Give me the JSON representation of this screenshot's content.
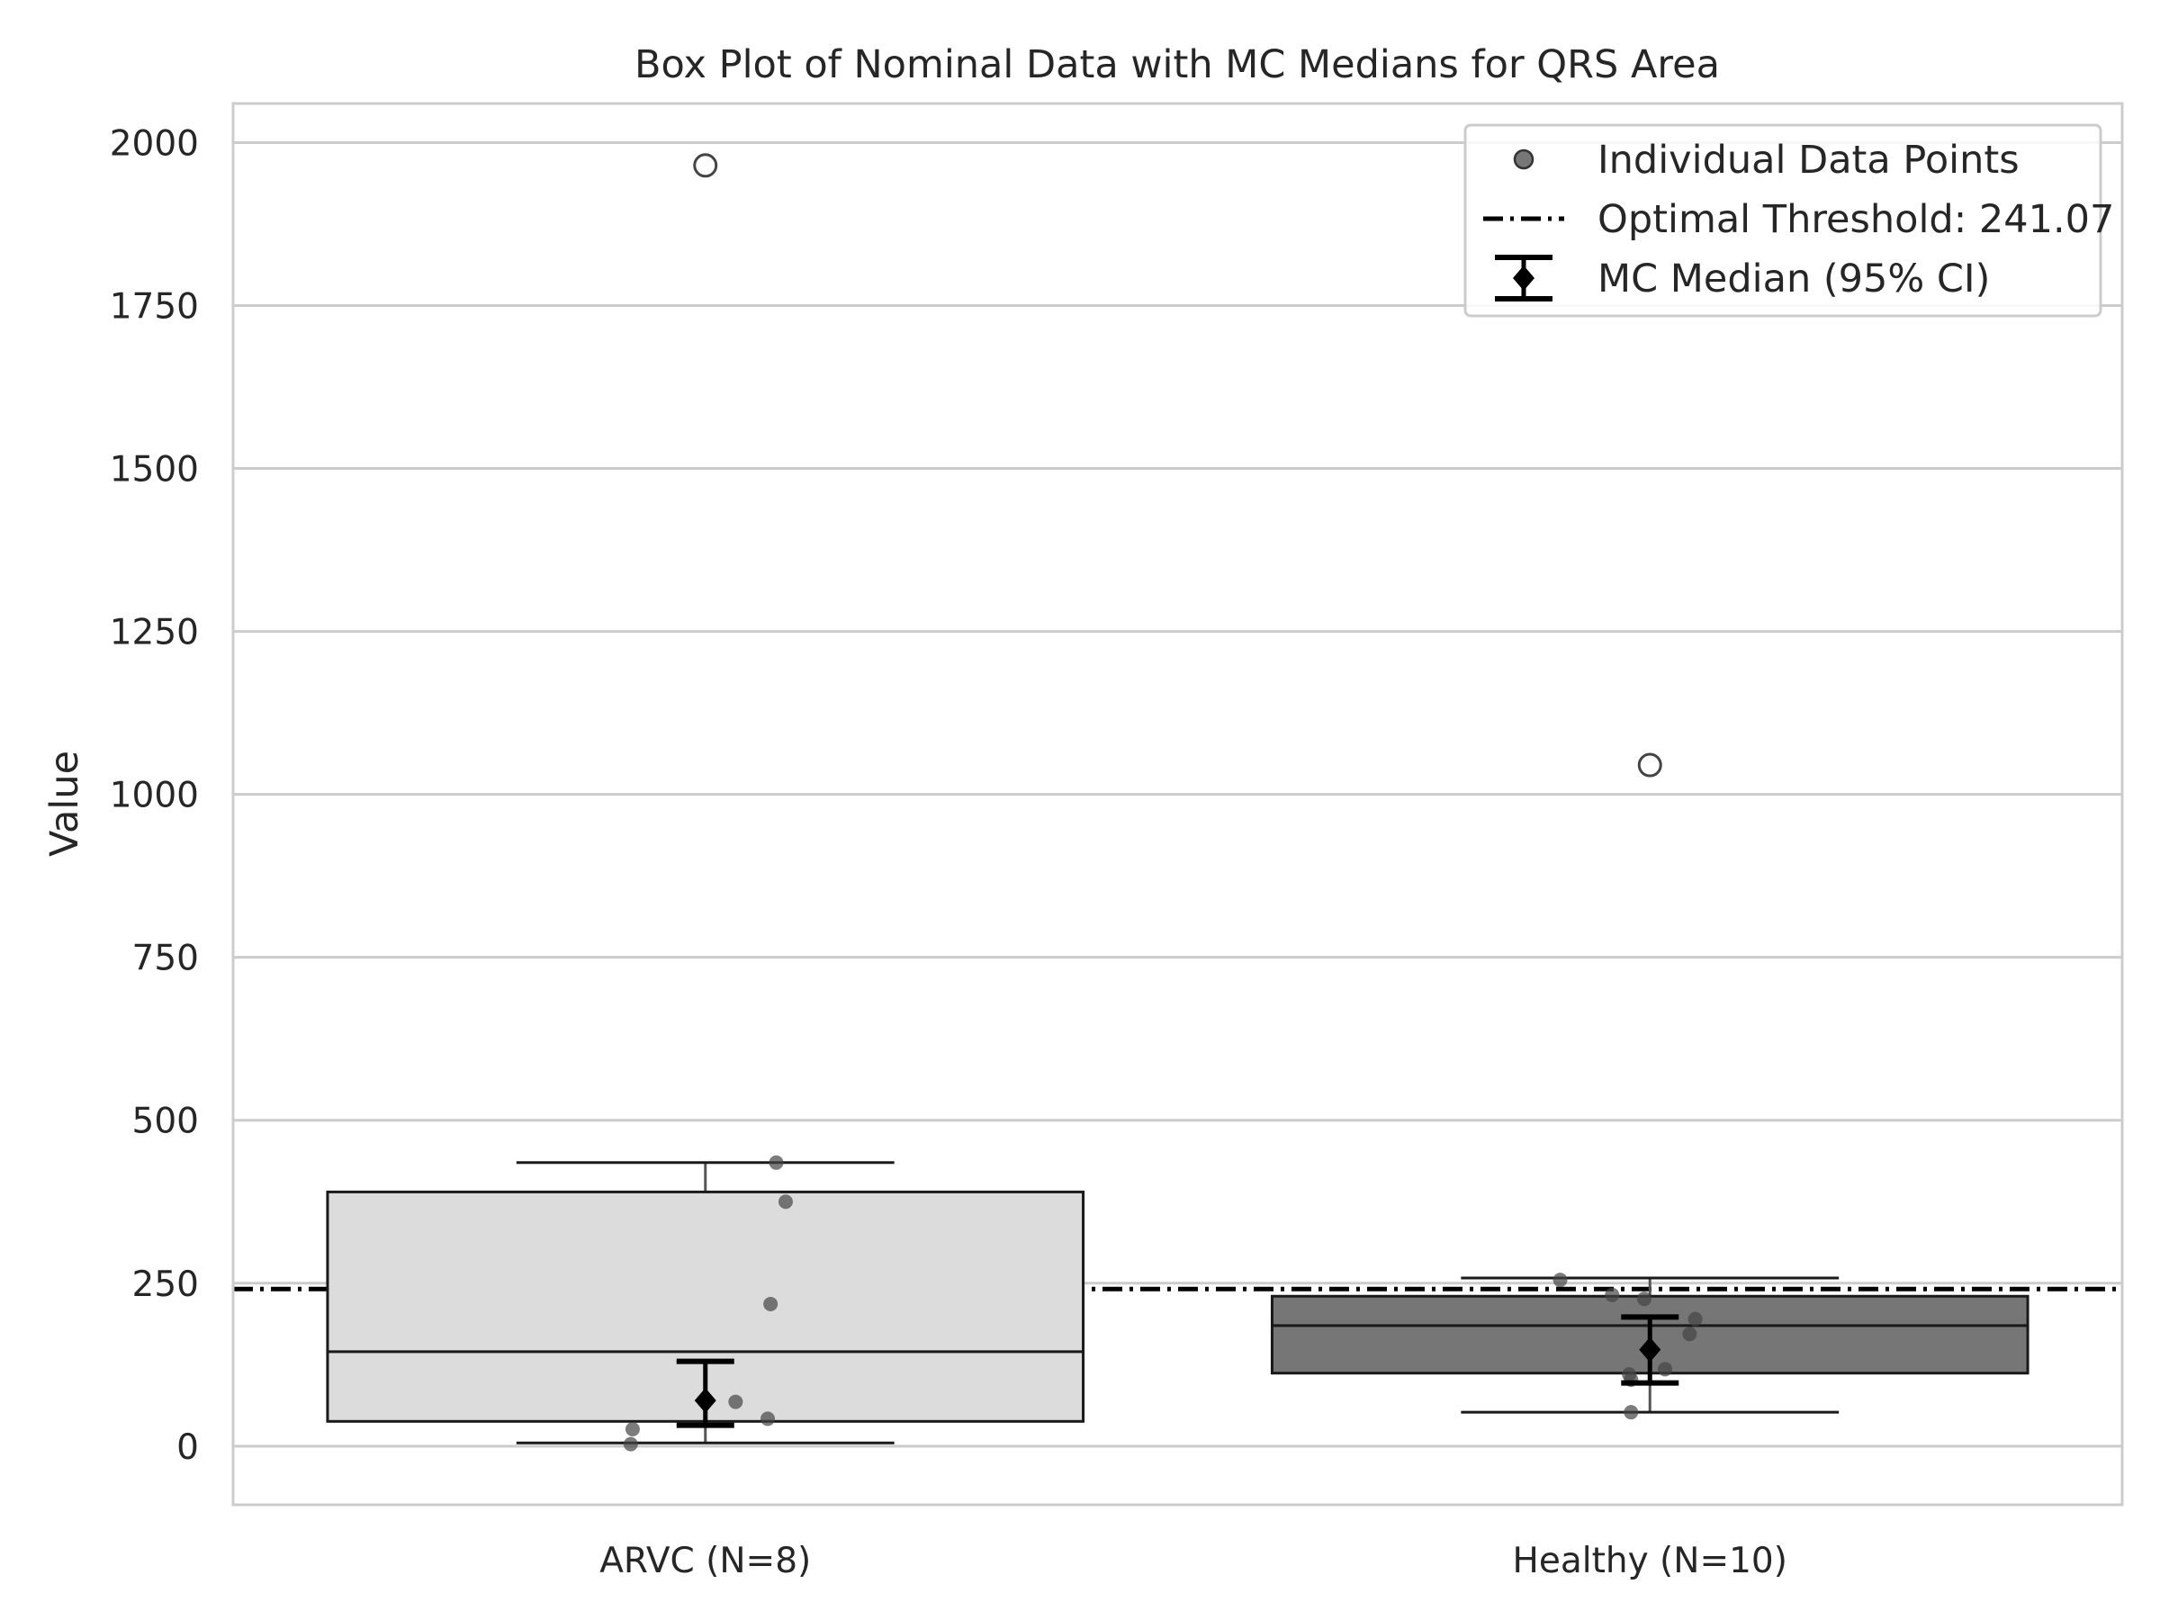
{
  "chart_data": {
    "type": "box",
    "title": "Box Plot of Nominal Data with MC Medians for QRS Area",
    "xlabel": "",
    "ylabel": "Value",
    "ylim": [
      -90,
      2060
    ],
    "yticks": [
      0,
      250,
      500,
      750,
      1000,
      1250,
      1500,
      1750,
      2000
    ],
    "grid": true,
    "legend_position": "top-right",
    "categories": [
      "ARVC (N=8)",
      "Healthy (N=10)"
    ],
    "groups": [
      {
        "category": "ARVC (N=8)",
        "color": "#dcdcdc",
        "box": {
          "whisker_low": 5,
          "q1": 38,
          "median": 145,
          "q3": 390,
          "whisker_high": 435
        },
        "outliers": [
          1965
        ],
        "points": [
          435,
          375,
          218,
          68,
          42,
          26,
          3,
          1965
        ],
        "mc_median": {
          "value": 70,
          "ci_low": 32,
          "ci_high": 130
        }
      },
      {
        "category": "Healthy (N=10)",
        "color": "#767676",
        "box": {
          "whisker_low": 52,
          "q1": 112,
          "median": 185,
          "q3": 230,
          "whisker_high": 258
        },
        "outliers": [
          1045
        ],
        "points": [
          255,
          232,
          226,
          195,
          172,
          118,
          110,
          102,
          52,
          1045
        ],
        "mc_median": {
          "value": 148,
          "ci_low": 97,
          "ci_high": 198
        }
      }
    ],
    "threshold": {
      "value": 241.07
    },
    "legend": [
      {
        "key": "points",
        "label": "Individual Data Points"
      },
      {
        "key": "threshold",
        "label": "Optimal Threshold: 241.07"
      },
      {
        "key": "mc",
        "label": "MC Median (95% CI)"
      }
    ]
  }
}
